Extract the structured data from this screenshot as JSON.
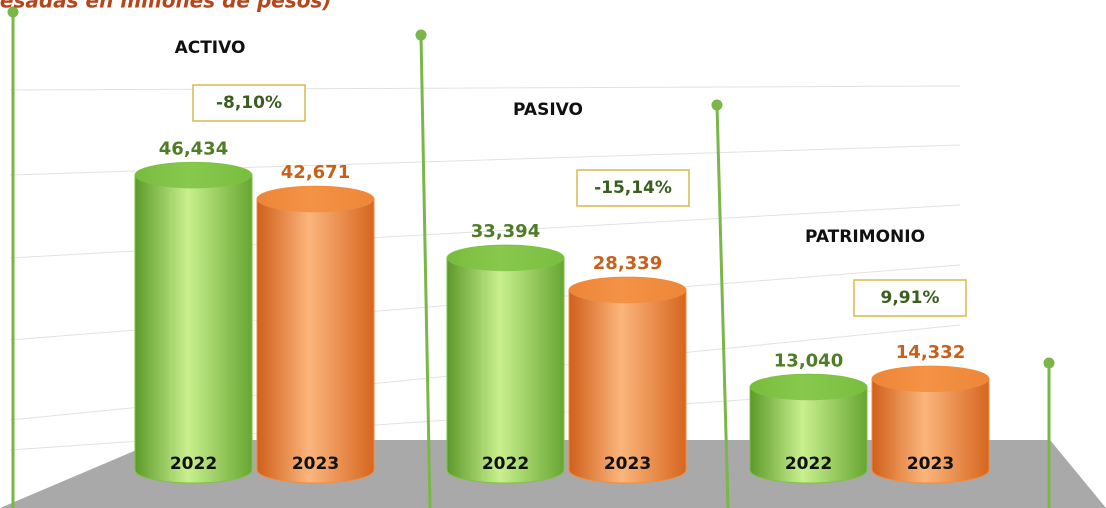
{
  "chart_data": {
    "type": "cylinder-bar",
    "subtitle": "(Expresadas en millones de pesos)",
    "categories": [
      "ACTIVO",
      "PASIVO",
      "PATRIMONIO"
    ],
    "changes": [
      "-8,10%",
      "-15,14%",
      "9,91%"
    ],
    "series": [
      {
        "name": "2022",
        "color": "#7cc242",
        "values": [
          46434,
          33394,
          13040
        ],
        "value_labels": [
          "46,434",
          "33,394",
          "13,040"
        ]
      },
      {
        "name": "2023",
        "color": "#f28c3c",
        "values": [
          42671,
          28339,
          14332
        ],
        "value_labels": [
          "42,671",
          "28,339",
          "14,332"
        ]
      }
    ],
    "ylim": [
      0,
      55000
    ]
  }
}
